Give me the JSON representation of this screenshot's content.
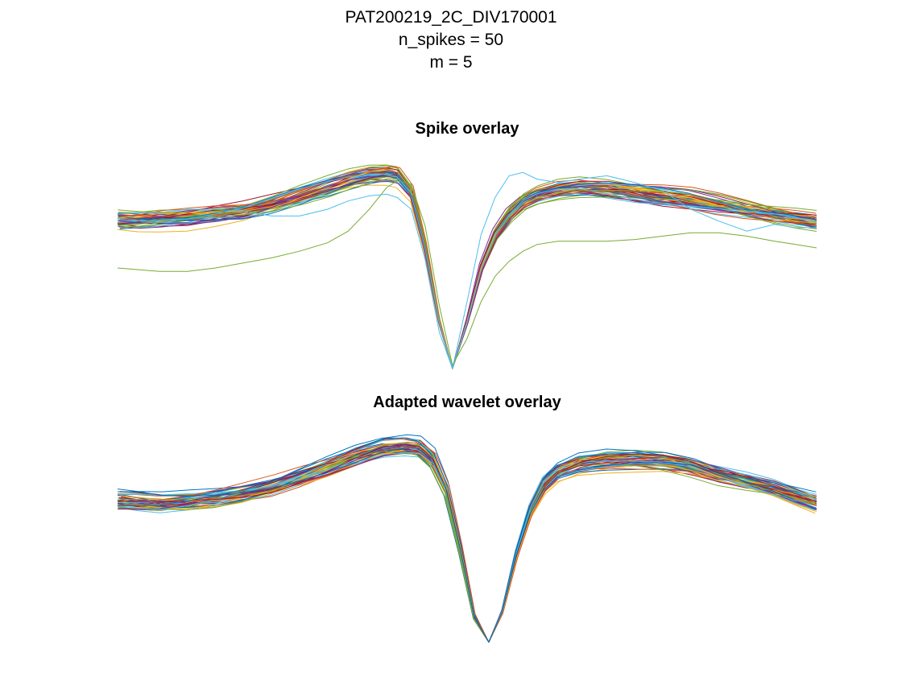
{
  "figure": {
    "suptitle_lines": [
      "PAT200219_2C_DIV170001",
      "n_spikes = 50",
      "m = 5"
    ]
  },
  "colors": [
    "#0072BD",
    "#D95319",
    "#EDB120",
    "#7E2F8E",
    "#77AC30",
    "#4DBEEE",
    "#A2142F"
  ],
  "chart_data": [
    {
      "type": "line",
      "title": "Spike overlay",
      "xlabel": "",
      "ylabel": "",
      "axes_visible": false,
      "grid": false,
      "n_series": 50,
      "x_range": [
        0,
        1
      ],
      "y_range": [
        -1.0,
        0.2
      ],
      "trough_x": 0.479,
      "x": [
        0.0,
        0.03,
        0.06,
        0.1,
        0.14,
        0.18,
        0.22,
        0.26,
        0.3,
        0.33,
        0.36,
        0.385,
        0.4,
        0.42,
        0.44,
        0.46,
        0.479,
        0.5,
        0.52,
        0.54,
        0.56,
        0.58,
        0.6,
        0.63,
        0.66,
        0.7,
        0.74,
        0.78,
        0.82,
        0.86,
        0.9,
        0.94,
        0.97,
        1.0
      ],
      "mean_waveform": [
        -0.12,
        -0.12,
        -0.11,
        -0.1,
        -0.08,
        -0.06,
        -0.02,
        0.03,
        0.08,
        0.12,
        0.15,
        0.16,
        0.15,
        0.05,
        -0.28,
        -0.72,
        -1.0,
        -0.72,
        -0.4,
        -0.2,
        -0.08,
        0.0,
        0.04,
        0.07,
        0.08,
        0.07,
        0.05,
        0.03,
        0.01,
        -0.02,
        -0.05,
        -0.08,
        -0.1,
        -0.12
      ],
      "outliers": [
        {
          "label": "green",
          "color": "#77AC30",
          "values": [
            -0.4,
            -0.41,
            -0.42,
            -0.42,
            -0.4,
            -0.37,
            -0.34,
            -0.3,
            -0.25,
            -0.18,
            -0.05,
            0.08,
            0.12,
            0.1,
            -0.15,
            -0.62,
            -0.98,
            -0.82,
            -0.6,
            -0.45,
            -0.36,
            -0.3,
            -0.26,
            -0.24,
            -0.24,
            -0.24,
            -0.23,
            -0.21,
            -0.19,
            -0.19,
            -0.21,
            -0.24,
            -0.26,
            -0.28
          ]
        },
        {
          "label": "light-blue",
          "color": "#4DBEEE",
          "values": [
            -0.08,
            -0.07,
            -0.07,
            -0.05,
            -0.05,
            -0.06,
            -0.09,
            -0.09,
            -0.05,
            0.0,
            0.03,
            0.04,
            0.02,
            -0.05,
            -0.35,
            -0.78,
            -1.0,
            -0.6,
            -0.2,
            0.02,
            0.15,
            0.17,
            0.13,
            0.11,
            0.13,
            0.15,
            0.11,
            0.06,
            -0.05,
            -0.12,
            -0.18,
            -0.14,
            -0.16,
            -0.16
          ]
        }
      ]
    },
    {
      "type": "line",
      "title": "Adapted wavelet overlay",
      "xlabel": "",
      "ylabel": "",
      "axes_visible": false,
      "grid": false,
      "n_series": 50,
      "x_range": [
        0,
        1
      ],
      "y_range": [
        -1.0,
        0.2
      ],
      "trough_x": 0.531,
      "x": [
        0.0,
        0.03,
        0.06,
        0.1,
        0.14,
        0.18,
        0.22,
        0.26,
        0.3,
        0.34,
        0.38,
        0.41,
        0.43,
        0.45,
        0.47,
        0.49,
        0.51,
        0.531,
        0.55,
        0.57,
        0.59,
        0.61,
        0.63,
        0.66,
        0.7,
        0.74,
        0.78,
        0.82,
        0.86,
        0.9,
        0.94,
        0.97,
        1.0
      ],
      "mean_waveform": [
        -0.16,
        -0.17,
        -0.18,
        -0.17,
        -0.15,
        -0.12,
        -0.08,
        -0.02,
        0.04,
        0.1,
        0.15,
        0.16,
        0.15,
        0.08,
        -0.1,
        -0.45,
        -0.85,
        -1.0,
        -0.82,
        -0.48,
        -0.22,
        -0.06,
        0.02,
        0.07,
        0.09,
        0.09,
        0.08,
        0.05,
        0.0,
        -0.04,
        -0.08,
        -0.12,
        -0.16
      ]
    }
  ]
}
